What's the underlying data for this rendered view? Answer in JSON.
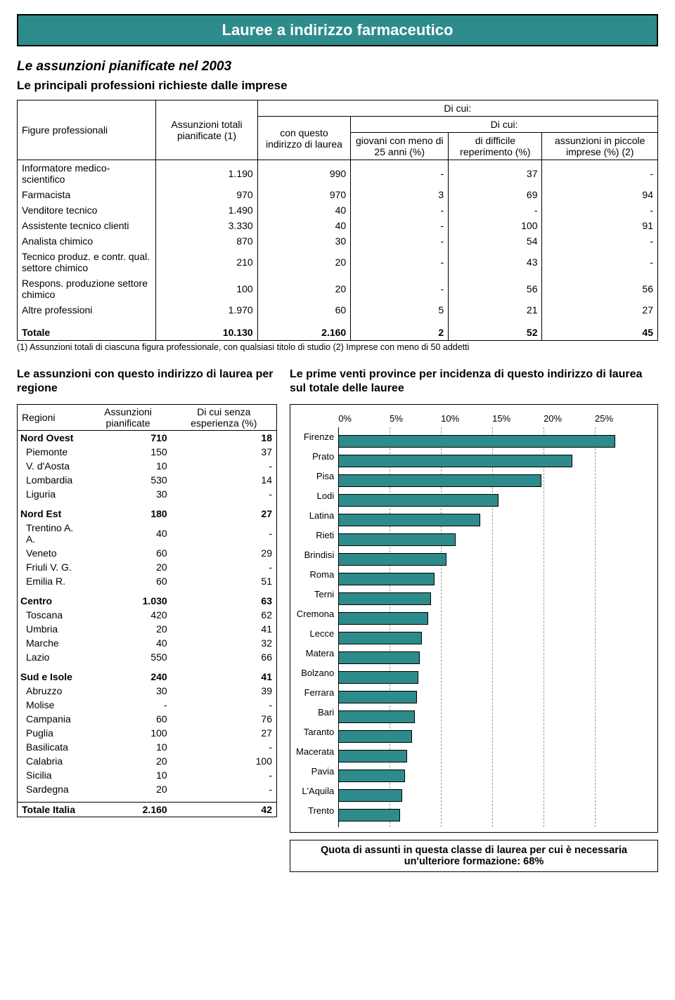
{
  "title": "Lauree a indirizzo farmaceutico",
  "subtitle1": "Le assunzioni pianificate nel 2003",
  "subtitle2": "Le principali professioni richieste dalle imprese",
  "profs": {
    "col_figure": "Figure professionali",
    "col_totali": "Assunzioni totali pianificate (1)",
    "col_dicui_top": "Di cui:",
    "col_questo": "con questo indirizzo di laurea",
    "col_dicui_sub": "Di cui:",
    "col_giovani": "giovani con meno di 25 anni (%)",
    "col_difficile": "di difficile reperimento (%)",
    "col_piccole": "assunzioni in piccole imprese (%) (2)",
    "rows": [
      {
        "name": "Informatore medico-scientifico",
        "tot": "1.190",
        "con": "990",
        "g": "-",
        "d": "37",
        "p": "-"
      },
      {
        "name": "Farmacista",
        "tot": "970",
        "con": "970",
        "g": "3",
        "d": "69",
        "p": "94"
      },
      {
        "name": "Venditore tecnico",
        "tot": "1.490",
        "con": "40",
        "g": "-",
        "d": "-",
        "p": "-"
      },
      {
        "name": "Assistente tecnico clienti",
        "tot": "3.330",
        "con": "40",
        "g": "-",
        "d": "100",
        "p": "91"
      },
      {
        "name": "Analista chimico",
        "tot": "870",
        "con": "30",
        "g": "-",
        "d": "54",
        "p": "-"
      },
      {
        "name": "Tecnico produz. e contr. qual. settore chimico",
        "tot": "210",
        "con": "20",
        "g": "-",
        "d": "43",
        "p": "-"
      },
      {
        "name": "Respons. produzione settore chimico",
        "tot": "100",
        "con": "20",
        "g": "-",
        "d": "56",
        "p": "56"
      },
      {
        "name": "Altre professioni",
        "tot": "1.970",
        "con": "60",
        "g": "5",
        "d": "21",
        "p": "27"
      }
    ],
    "total_label": "Totale",
    "total": {
      "tot": "10.130",
      "con": "2.160",
      "g": "2",
      "d": "52",
      "p": "45"
    },
    "footnote": "(1) Assunzioni totali di ciascuna figura professionale, con qualsiasi titolo di studio   (2) Imprese con meno di 50 addetti"
  },
  "left_title": "Le assunzioni con questo indirizzo di laurea per regione",
  "regions": {
    "col_regioni": "Regioni",
    "col_assunzioni": "Assunzioni pianificate",
    "col_senza": "Di cui senza esperienza (%)",
    "groups": [
      {
        "name": "Nord Ovest",
        "a": "710",
        "s": "18",
        "subs": [
          {
            "name": "Piemonte",
            "a": "150",
            "s": "37"
          },
          {
            "name": "V. d'Aosta",
            "a": "10",
            "s": "-"
          },
          {
            "name": "Lombardia",
            "a": "530",
            "s": "14"
          },
          {
            "name": "Liguria",
            "a": "30",
            "s": "-"
          }
        ]
      },
      {
        "name": "Nord Est",
        "a": "180",
        "s": "27",
        "subs": [
          {
            "name": "Trentino A. A.",
            "a": "40",
            "s": "-"
          },
          {
            "name": "Veneto",
            "a": "60",
            "s": "29"
          },
          {
            "name": "Friuli V. G.",
            "a": "20",
            "s": "-"
          },
          {
            "name": "Emilia R.",
            "a": "60",
            "s": "51"
          }
        ]
      },
      {
        "name": "Centro",
        "a": "1.030",
        "s": "63",
        "subs": [
          {
            "name": "Toscana",
            "a": "420",
            "s": "62"
          },
          {
            "name": "Umbria",
            "a": "20",
            "s": "41"
          },
          {
            "name": "Marche",
            "a": "40",
            "s": "32"
          },
          {
            "name": "Lazio",
            "a": "550",
            "s": "66"
          }
        ]
      },
      {
        "name": "Sud e Isole",
        "a": "240",
        "s": "41",
        "subs": [
          {
            "name": "Abruzzo",
            "a": "30",
            "s": "39"
          },
          {
            "name": "Molise",
            "a": "-",
            "s": "-"
          },
          {
            "name": "Campania",
            "a": "60",
            "s": "76"
          },
          {
            "name": "Puglia",
            "a": "100",
            "s": "27"
          },
          {
            "name": "Basilicata",
            "a": "10",
            "s": "-"
          },
          {
            "name": "Calabria",
            "a": "20",
            "s": "100"
          },
          {
            "name": "Sicilia",
            "a": "10",
            "s": "-"
          },
          {
            "name": "Sardegna",
            "a": "20",
            "s": "-"
          }
        ]
      }
    ],
    "total_label": "Totale Italia",
    "total": {
      "a": "2.160",
      "s": "42"
    }
  },
  "right_title": "Le prime venti province per incidenza di questo indirizzo di laurea sul totale delle lauree",
  "chart": {
    "type": "bar-horizontal",
    "x_ticks": [
      "0%",
      "5%",
      "10%",
      "15%",
      "20%",
      "25%"
    ],
    "x_max": 25,
    "bar_color": "#2e8b8b",
    "bar_border": "#000000",
    "grid_color": "#999999",
    "bars": [
      {
        "label": "Firenze",
        "value": 22.5
      },
      {
        "label": "Prato",
        "value": 19.0
      },
      {
        "label": "Pisa",
        "value": 16.5
      },
      {
        "label": "Lodi",
        "value": 13.0
      },
      {
        "label": "Latina",
        "value": 11.5
      },
      {
        "label": "Rieti",
        "value": 9.5
      },
      {
        "label": "Brindisi",
        "value": 8.8
      },
      {
        "label": "Roma",
        "value": 7.8
      },
      {
        "label": "Terni",
        "value": 7.5
      },
      {
        "label": "Cremona",
        "value": 7.3
      },
      {
        "label": "Lecce",
        "value": 6.8
      },
      {
        "label": "Matera",
        "value": 6.6
      },
      {
        "label": "Bolzano",
        "value": 6.5
      },
      {
        "label": "Ferrara",
        "value": 6.4
      },
      {
        "label": "Bari",
        "value": 6.2
      },
      {
        "label": "Taranto",
        "value": 6.0
      },
      {
        "label": "Macerata",
        "value": 5.6
      },
      {
        "label": "Pavia",
        "value": 5.4
      },
      {
        "label": "L'Aquila",
        "value": 5.2
      },
      {
        "label": "Trento",
        "value": 5.0
      }
    ]
  },
  "quota": "Quota di assunti in questa classe di laurea per cui è necessaria un'ulteriore formazione: 68%"
}
